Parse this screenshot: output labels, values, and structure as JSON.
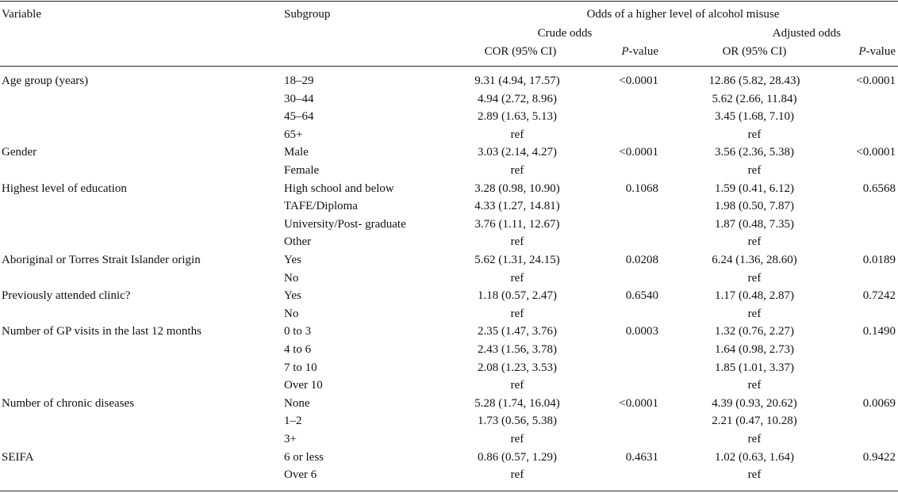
{
  "header": {
    "variable": "Variable",
    "subgroup": "Subgroup",
    "group_title": "Odds of a higher level of alcohol misuse",
    "crude": "Crude odds",
    "adjusted": "Adjusted odds",
    "cor": "COR (95% CI)",
    "or": "OR (95% CI)",
    "p_italic": "P",
    "p_rest": "-value"
  },
  "rows": [
    {
      "variable": "Age group (years)",
      "subgroup": "18–29",
      "cor": "9.31 (4.94, 17.57)",
      "p1": "<0.0001",
      "or": "12.86 (5.82, 28.43)",
      "p2": "<0.0001"
    },
    {
      "variable": "",
      "subgroup": "30–44",
      "cor": "4.94 (2.72, 8.96)",
      "p1": "",
      "or": "5.62 (2.66, 11.84)",
      "p2": ""
    },
    {
      "variable": "",
      "subgroup": "45–64",
      "cor": "2.89 (1.63, 5.13)",
      "p1": "",
      "or": "3.45 (1.68, 7.10)",
      "p2": ""
    },
    {
      "variable": "",
      "subgroup": "65+",
      "cor": "ref",
      "p1": "",
      "or": "ref",
      "p2": ""
    },
    {
      "variable": "Gender",
      "subgroup": "Male",
      "cor": "3.03 (2.14, 4.27)",
      "p1": "<0.0001",
      "or": "3.56 (2.36, 5.38)",
      "p2": "<0.0001"
    },
    {
      "variable": "",
      "subgroup": "Female",
      "cor": "ref",
      "p1": "",
      "or": "ref",
      "p2": ""
    },
    {
      "variable": "Highest level of education",
      "subgroup": "High school and below",
      "cor": "3.28 (0.98, 10.90)",
      "p1": "0.1068",
      "or": "1.59 (0.41, 6.12)",
      "p2": "0.6568"
    },
    {
      "variable": "",
      "subgroup": "TAFE/Diploma",
      "cor": "4.33 (1.27, 14.81)",
      "p1": "",
      "or": "1.98 (0.50, 7.87)",
      "p2": ""
    },
    {
      "variable": "",
      "subgroup": "University/Post- graduate",
      "cor": "3.76 (1.11, 12.67)",
      "p1": "",
      "or": "1.87 (0.48, 7.35)",
      "p2": ""
    },
    {
      "variable": "",
      "subgroup": "Other",
      "cor": "ref",
      "p1": "",
      "or": "ref",
      "p2": ""
    },
    {
      "variable": "Aboriginal or Torres Strait Islander origin",
      "subgroup": "Yes",
      "cor": "5.62 (1.31, 24.15)",
      "p1": "0.0208",
      "or": "6.24 (1.36, 28.60)",
      "p2": "0.0189"
    },
    {
      "variable": "",
      "subgroup": "No",
      "cor": "ref",
      "p1": "",
      "or": "ref",
      "p2": ""
    },
    {
      "variable": "Previously attended clinic?",
      "subgroup": "Yes",
      "cor": "1.18 (0.57, 2.47)",
      "p1": "0.6540",
      "or": "1.17 (0.48, 2.87)",
      "p2": "0.7242"
    },
    {
      "variable": "",
      "subgroup": "No",
      "cor": "ref",
      "p1": "",
      "or": "ref",
      "p2": ""
    },
    {
      "variable": "Number of GP visits in the last 12 months",
      "subgroup": "0 to 3",
      "cor": "2.35 (1.47, 3.76)",
      "p1": "0.0003",
      "or": "1.32 (0.76, 2.27)",
      "p2": "0.1490"
    },
    {
      "variable": "",
      "subgroup": "4 to 6",
      "cor": "2.43 (1.56, 3.78)",
      "p1": "",
      "or": "1.64 (0.98, 2.73)",
      "p2": ""
    },
    {
      "variable": "",
      "subgroup": "7 to 10",
      "cor": "2.08 (1.23, 3.53)",
      "p1": "",
      "or": "1.85 (1.01, 3.37)",
      "p2": ""
    },
    {
      "variable": "",
      "subgroup": "Over 10",
      "cor": "ref",
      "p1": "",
      "or": "ref",
      "p2": ""
    },
    {
      "variable": "Number of chronic diseases",
      "subgroup": "None",
      "cor": "5.28 (1.74, 16.04)",
      "p1": "<0.0001",
      "or": "4.39 (0.93, 20.62)",
      "p2": "0.0069"
    },
    {
      "variable": "",
      "subgroup": "1–2",
      "cor": "1.73 (0.56, 5.38)",
      "p1": "",
      "or": "2.21 (0.47, 10.28)",
      "p2": ""
    },
    {
      "variable": "",
      "subgroup": "3+",
      "cor": "ref",
      "p1": "",
      "or": "ref",
      "p2": ""
    },
    {
      "variable": "SEIFA",
      "subgroup": "6 or less",
      "cor": "0.86 (0.57, 1.29)",
      "p1": "0.4631",
      "or": "1.02 (0.63, 1.64)",
      "p2": "0.9422"
    },
    {
      "variable": "",
      "subgroup": "Over 6",
      "cor": "ref",
      "p1": "",
      "or": "ref",
      "p2": ""
    }
  ]
}
